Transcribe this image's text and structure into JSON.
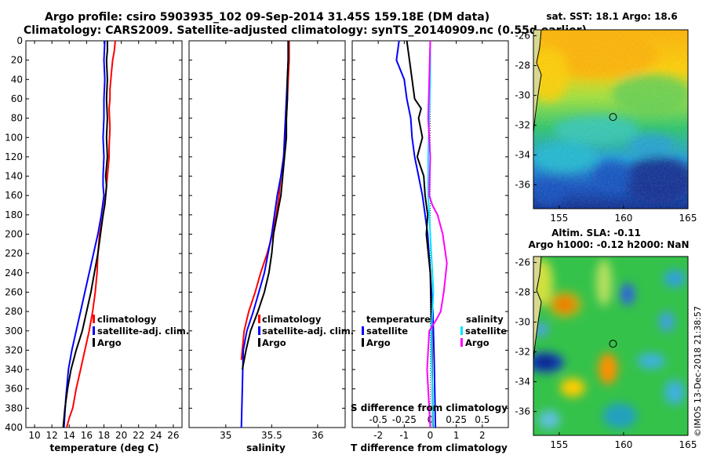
{
  "title": {
    "line1": "Argo profile: csiro 5903935_102 09-Sep-2014 31.45S 159.18E (DM data)",
    "line2": "Climatology: CARS2009. Satellite-adjusted climatology: synTS_20140909.nc (0.55d earlier)"
  },
  "colors": {
    "climatology": "#ff0000",
    "satellite": "#0000ff",
    "argo": "#000000",
    "s_satellite": "#00e5ff",
    "s_argo": "#ff00ff"
  },
  "chart_data": [
    {
      "type": "line",
      "id": "temperature",
      "xlabel": "temperature (deg C)",
      "ylabel": "",
      "xlim": [
        9,
        27
      ],
      "ylim": [
        400,
        0
      ],
      "xticks": [
        10,
        12,
        14,
        16,
        18,
        20,
        22,
        24,
        26
      ],
      "xtick_labels": [
        "10",
        "12",
        "14",
        "16",
        "18",
        "20",
        "22",
        "24",
        "26"
      ],
      "yticks": [
        0,
        20,
        40,
        60,
        80,
        100,
        120,
        140,
        160,
        180,
        200,
        220,
        240,
        260,
        280,
        300,
        320,
        340,
        360,
        380,
        400
      ],
      "ytick_labels": [
        "0",
        "20",
        "40",
        "60",
        "80",
        "100",
        "120",
        "140",
        "160",
        "180",
        "200",
        "220",
        "240",
        "260",
        "280",
        "300",
        "320",
        "340",
        "360",
        "380",
        "400"
      ],
      "legend": [
        "climatology",
        "satellite-adj. clim.",
        "Argo"
      ],
      "series": [
        {
          "name": "climatology",
          "color": "#ff0000",
          "x": [
            19.3,
            19.2,
            19.0,
            18.9,
            18.8,
            18.7,
            18.7,
            18.6,
            18.7,
            18.6,
            18.6,
            18.5,
            18.4,
            18.3,
            18.2,
            17.9,
            17.5,
            17.3,
            17.2,
            17.0,
            16.7,
            16.3,
            15.8,
            15.3,
            14.8,
            14.4,
            14.0,
            13.7
          ],
          "y": [
            0,
            10,
            20,
            30,
            40,
            50,
            60,
            70,
            90,
            110,
            120,
            130,
            140,
            150,
            160,
            180,
            200,
            220,
            240,
            260,
            280,
            300,
            320,
            340,
            360,
            380,
            390,
            400
          ]
        },
        {
          "name": "satellite-adj. clim.",
          "color": "#0000ff",
          "x": [
            18.1,
            18.0,
            18.1,
            18.0,
            18.0,
            17.9,
            18.0,
            17.9,
            17.9,
            18.0,
            17.7,
            17.3,
            16.8,
            16.3,
            15.8,
            15.3,
            14.8,
            14.3,
            13.9,
            13.6,
            13.4
          ],
          "y": [
            0,
            20,
            40,
            60,
            80,
            100,
            120,
            140,
            150,
            160,
            180,
            200,
            220,
            240,
            260,
            280,
            300,
            320,
            340,
            370,
            400
          ]
        },
        {
          "name": "Argo",
          "color": "#000000",
          "x": [
            18.4,
            18.4,
            18.3,
            18.4,
            18.3,
            18.4,
            18.3,
            18.4,
            18.3,
            18.2,
            18.3,
            18.2,
            18.1,
            17.9,
            17.6,
            17.3,
            16.9,
            16.5,
            16.0,
            15.5,
            14.8,
            14.2,
            13.8,
            13.5,
            13.3
          ],
          "y": [
            0,
            10,
            20,
            40,
            60,
            80,
            100,
            120,
            130,
            140,
            150,
            160,
            170,
            180,
            200,
            220,
            240,
            260,
            280,
            300,
            320,
            340,
            360,
            380,
            400
          ]
        }
      ]
    },
    {
      "type": "line",
      "id": "salinity",
      "xlabel": "salinity",
      "xlim": [
        34.6,
        36.3
      ],
      "ylim": [
        400,
        0
      ],
      "xticks": [
        35,
        35.5,
        36
      ],
      "xtick_labels": [
        "35",
        "35.5",
        "36"
      ],
      "legend": [
        "climatology",
        "satellite-adj. clim.",
        "Argo"
      ],
      "series": [
        {
          "name": "climatology",
          "color": "#ff0000",
          "x": [
            35.69,
            35.69,
            35.68,
            35.67,
            35.66,
            35.65,
            35.63,
            35.6,
            35.58,
            35.55,
            35.51,
            35.45,
            35.38,
            35.32,
            35.25,
            35.2,
            35.17
          ],
          "y": [
            0,
            20,
            40,
            60,
            80,
            100,
            120,
            140,
            160,
            180,
            200,
            220,
            240,
            260,
            280,
            300,
            330
          ]
        },
        {
          "name": "satellite-adj. clim.",
          "color": "#0000ff",
          "x": [
            35.68,
            35.68,
            35.67,
            35.66,
            35.65,
            35.64,
            35.63,
            35.6,
            35.56,
            35.53,
            35.5,
            35.46,
            35.42,
            35.36,
            35.3,
            35.23,
            35.19,
            35.17
          ],
          "y": [
            0,
            20,
            40,
            60,
            80,
            100,
            120,
            140,
            160,
            180,
            200,
            220,
            240,
            260,
            280,
            300,
            320,
            400
          ]
        },
        {
          "name": "Argo",
          "color": "#000000",
          "x": [
            35.68,
            35.68,
            35.67,
            35.67,
            35.66,
            35.66,
            35.64,
            35.62,
            35.6,
            35.56,
            35.54,
            35.52,
            35.5,
            35.47,
            35.42,
            35.35,
            35.27,
            35.22,
            35.18
          ],
          "y": [
            0,
            20,
            40,
            60,
            80,
            100,
            120,
            140,
            160,
            180,
            190,
            200,
            220,
            240,
            260,
            280,
            300,
            320,
            340
          ]
        }
      ]
    },
    {
      "type": "line",
      "id": "differences",
      "xlabel": "T difference from climatology",
      "xlim": [
        -3,
        3
      ],
      "xticks": [
        -2,
        -1,
        0,
        1,
        2
      ],
      "xtick_labels": [
        "-2",
        "-1",
        "0",
        "1",
        "2"
      ],
      "secondary_xlabel": "S difference from climatology",
      "secondary_xticks": [
        -0.5,
        -0.25,
        0,
        0.25,
        0.5
      ],
      "secondary_xtick_labels": [
        "-0.5",
        "-0.25",
        "0",
        "0.25",
        "0.5"
      ],
      "secondary_xlim": [
        -0.75,
        0.75
      ],
      "ylim": [
        400,
        0
      ],
      "legend_temperature": {
        "heading": "temperature",
        "items": [
          "satellite",
          "Argo"
        ]
      },
      "legend_salinity": {
        "heading": "salinity",
        "items": [
          "satellite",
          "Argo"
        ]
      },
      "series": [
        {
          "name": "T satellite",
          "color": "#0000ff",
          "axis": "T",
          "x": [
            -1.2,
            -1.3,
            -1.0,
            -0.9,
            -0.75,
            -0.7,
            -0.6,
            -0.45,
            -0.3,
            -0.2,
            -0.1,
            0.0,
            0.1,
            0.15,
            0.2
          ],
          "y": [
            0,
            20,
            40,
            60,
            80,
            100,
            120,
            140,
            160,
            180,
            200,
            240,
            280,
            330,
            400
          ]
        },
        {
          "name": "T Argo",
          "color": "#000000",
          "x": [
            -0.9,
            -0.8,
            -0.7,
            -0.6,
            -0.35,
            -0.45,
            -0.3,
            -0.5,
            -0.25,
            -0.2,
            -0.1,
            -0.15,
            0.0,
            0.05,
            0.1
          ],
          "y": [
            0,
            20,
            40,
            60,
            70,
            80,
            100,
            120,
            140,
            160,
            180,
            200,
            240,
            300,
            400
          ]
        },
        {
          "name": "S satellite",
          "color": "#00e5ff",
          "axis": "S",
          "x": [
            0.0,
            0.0,
            -0.01,
            -0.02,
            -0.02,
            -0.01,
            0.0,
            0.01,
            0.02,
            0.03,
            0.02,
            0.01,
            0.01,
            0.02,
            0.02
          ],
          "y": [
            0,
            40,
            80,
            120,
            160,
            180,
            200,
            220,
            240,
            260,
            280,
            300,
            320,
            360,
            400
          ]
        },
        {
          "name": "S Argo",
          "color": "#ff00ff",
          "axis": "S",
          "x": [
            0.0,
            -0.01,
            -0.02,
            0.0,
            -0.01,
            0.02,
            0.07,
            0.12,
            0.16,
            0.13,
            0.1,
            0.05,
            -0.01,
            -0.02,
            -0.03,
            -0.02,
            0.0
          ],
          "y": [
            0,
            40,
            80,
            120,
            160,
            170,
            180,
            200,
            230,
            260,
            280,
            290,
            300,
            320,
            340,
            360,
            400
          ]
        }
      ]
    },
    {
      "type": "heatmap",
      "id": "sst_map",
      "title": "sat. SST: 18.1 Argo: 18.6",
      "xlim": [
        153,
        165
      ],
      "ylim": [
        -37.6,
        -25.6
      ],
      "xticks": [
        155,
        160,
        165
      ],
      "xtick_labels": [
        "155",
        "160",
        "165"
      ],
      "yticks": [
        -26,
        -28,
        -30,
        -32,
        -34,
        -36
      ],
      "ytick_labels": [
        "-26",
        "-28",
        "-30",
        "-32",
        "-34",
        "-36"
      ],
      "argo_position": {
        "lon": 159.18,
        "lat": -31.45
      }
    },
    {
      "type": "heatmap",
      "id": "sla_map",
      "title_line1": "Altim. SLA: -0.11",
      "title_line2": "Argo h1000: -0.12 h2000: NaN",
      "xlim": [
        153,
        165
      ],
      "ylim": [
        -37.6,
        -25.6
      ],
      "xticks": [
        155,
        160,
        165
      ],
      "xtick_labels": [
        "155",
        "160",
        "165"
      ],
      "yticks": [
        -26,
        -28,
        -30,
        -32,
        -34,
        -36
      ],
      "ytick_labels": [
        "-26",
        "-28",
        "-30",
        "-32",
        "-34",
        "-36"
      ],
      "argo_position": {
        "lon": 159.18,
        "lat": -31.45
      }
    }
  ],
  "watermark": "©IMOS 13-Dec-2018 21:38:57"
}
